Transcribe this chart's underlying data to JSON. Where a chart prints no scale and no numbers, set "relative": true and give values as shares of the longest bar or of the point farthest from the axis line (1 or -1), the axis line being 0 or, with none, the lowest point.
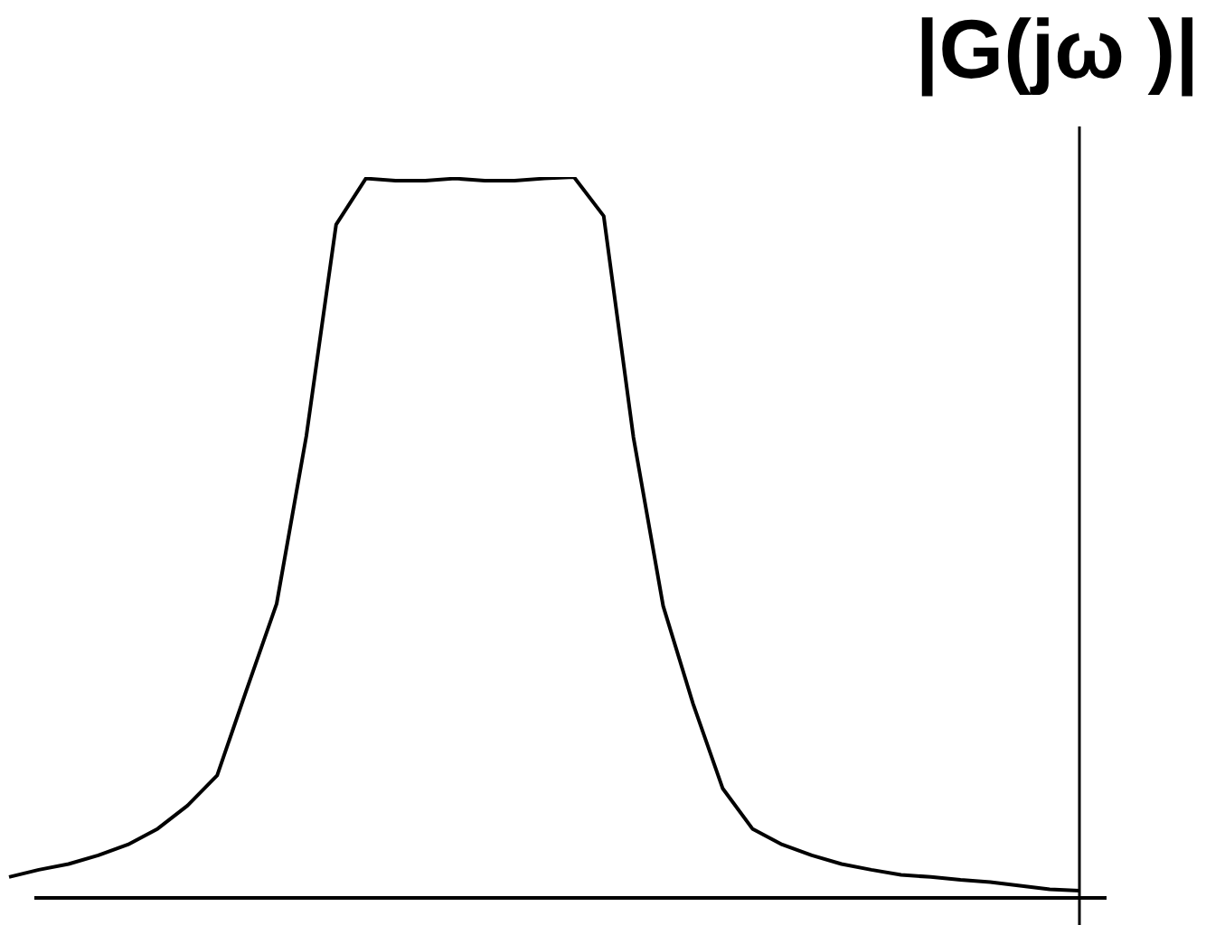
{
  "chart_data": {
    "type": "line",
    "ylabel": "|G(jω )|",
    "relative": true,
    "color": "#000000",
    "marker": "none",
    "categories": [
      null,
      null,
      null,
      null,
      null,
      null,
      null,
      null,
      null,
      null,
      null,
      null,
      null,
      null,
      null,
      null,
      null,
      null,
      null,
      null,
      null,
      null,
      null,
      null,
      null,
      null,
      null,
      null,
      null,
      null,
      null,
      null,
      null,
      null,
      null,
      null,
      null
    ],
    "values": [
      0.029,
      0.039,
      0.047,
      0.059,
      0.074,
      0.096,
      0.128,
      0.17,
      0.29,
      0.408,
      0.641,
      0.934,
      0.998,
      0.995,
      0.995,
      0.998,
      0.995,
      0.995,
      0.998,
      1,
      0.946,
      0.639,
      0.405,
      0.27,
      0.152,
      0.096,
      0.074,
      0.059,
      0.047,
      0.039,
      0.032,
      0.029,
      0.025,
      0.022,
      0.017,
      0.012,
      0.01
    ]
  }
}
